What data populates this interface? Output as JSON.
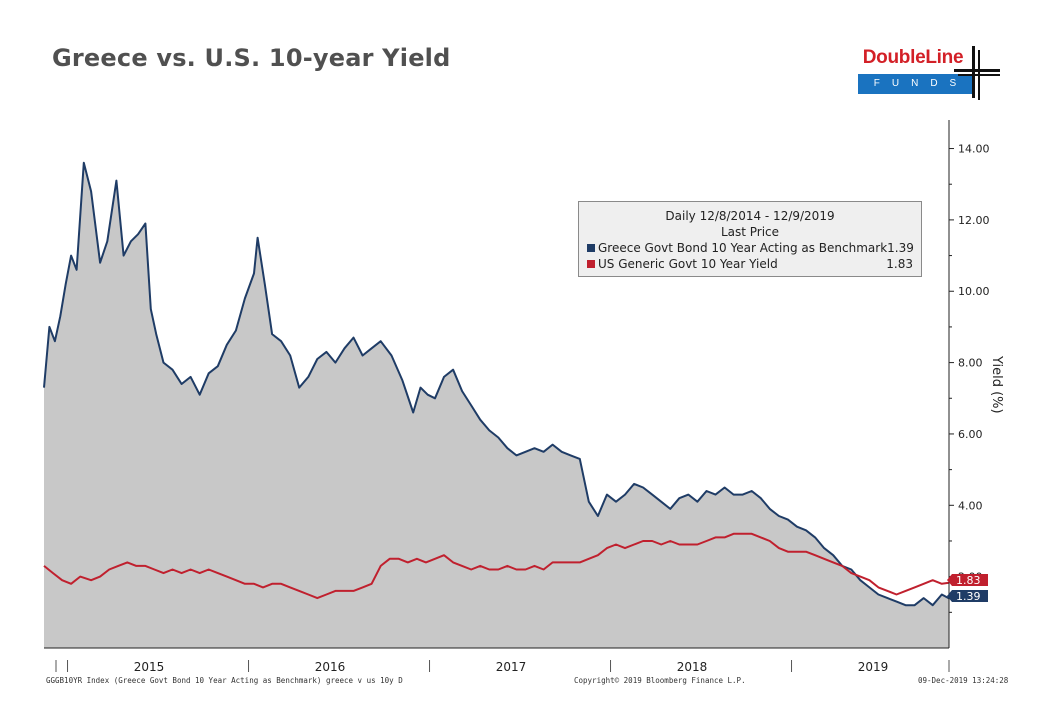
{
  "slide": {
    "title": "Greece vs. U.S. 10-year Yield"
  },
  "logo": {
    "name": "DoubleLine",
    "sub": "FUNDS"
  },
  "chart_data": {
    "type": "area",
    "title": "Greece vs. U.S. 10-year Yield",
    "ylabel": "Yield (%)",
    "xlabel": "",
    "ylim": [
      0,
      14.8
    ],
    "y_ticks": [
      "14.00",
      "12.00",
      "10.00",
      "8.00",
      "6.00",
      "4.00",
      "2.00"
    ],
    "y_tick_values": [
      14,
      12,
      10,
      8,
      6,
      4,
      2
    ],
    "x_ticks": [
      "2015",
      "2016",
      "2017",
      "2018",
      "2019"
    ],
    "x_tick_values": [
      2015.5,
      2016.5,
      2017.5,
      2018.5,
      2019.5
    ],
    "xlim": [
      2014.94,
      2019.94
    ],
    "legend": {
      "header1": "Daily 12/8/2014 - 12/9/2019",
      "header2": "Last Price",
      "placement": "top-right"
    },
    "series": [
      {
        "name": "Greece Govt Bond 10 Year Acting as Benchmark",
        "last": "1.39",
        "color": "#1f3c66",
        "fill": "#c8c8c8",
        "x": [
          2014.94,
          2014.97,
          2015.0,
          2015.03,
          2015.06,
          2015.09,
          2015.12,
          2015.16,
          2015.2,
          2015.25,
          2015.29,
          2015.34,
          2015.38,
          2015.42,
          2015.46,
          2015.5,
          2015.53,
          2015.56,
          2015.6,
          2015.65,
          2015.7,
          2015.75,
          2015.8,
          2015.85,
          2015.9,
          2015.95,
          2016.0,
          2016.05,
          2016.1,
          2016.12,
          2016.16,
          2016.2,
          2016.25,
          2016.3,
          2016.35,
          2016.4,
          2016.45,
          2016.5,
          2016.55,
          2016.6,
          2016.65,
          2016.7,
          2016.75,
          2016.8,
          2016.86,
          2016.92,
          2016.98,
          2017.02,
          2017.06,
          2017.1,
          2017.15,
          2017.2,
          2017.25,
          2017.3,
          2017.35,
          2017.4,
          2017.45,
          2017.5,
          2017.55,
          2017.6,
          2017.65,
          2017.7,
          2017.75,
          2017.8,
          2017.85,
          2017.9,
          2017.95,
          2018.0,
          2018.05,
          2018.1,
          2018.15,
          2018.2,
          2018.25,
          2018.3,
          2018.35,
          2018.4,
          2018.45,
          2018.5,
          2018.55,
          2018.6,
          2018.65,
          2018.7,
          2018.75,
          2018.8,
          2018.85,
          2018.9,
          2018.95,
          2019.0,
          2019.05,
          2019.1,
          2019.15,
          2019.2,
          2019.25,
          2019.3,
          2019.35,
          2019.4,
          2019.45,
          2019.5,
          2019.55,
          2019.6,
          2019.65,
          2019.7,
          2019.75,
          2019.8,
          2019.85,
          2019.9,
          2019.94
        ],
        "values": [
          7.3,
          9.0,
          8.6,
          9.3,
          10.2,
          11.0,
          10.6,
          13.6,
          12.8,
          10.8,
          11.4,
          13.1,
          11.0,
          11.4,
          11.6,
          11.9,
          9.5,
          8.8,
          8.0,
          7.8,
          7.4,
          7.6,
          7.1,
          7.7,
          7.9,
          8.5,
          8.9,
          9.8,
          10.5,
          11.5,
          10.2,
          8.8,
          8.6,
          8.2,
          7.3,
          7.6,
          8.1,
          8.3,
          8.0,
          8.4,
          8.7,
          8.2,
          8.4,
          8.6,
          8.2,
          7.5,
          6.6,
          7.3,
          7.1,
          7.0,
          7.6,
          7.8,
          7.2,
          6.8,
          6.4,
          6.1,
          5.9,
          5.6,
          5.4,
          5.5,
          5.6,
          5.5,
          5.7,
          5.5,
          5.4,
          5.3,
          4.1,
          3.7,
          4.3,
          4.1,
          4.3,
          4.6,
          4.5,
          4.3,
          4.1,
          3.9,
          4.2,
          4.3,
          4.1,
          4.4,
          4.3,
          4.5,
          4.3,
          4.3,
          4.4,
          4.2,
          3.9,
          3.7,
          3.6,
          3.4,
          3.3,
          3.1,
          2.8,
          2.6,
          2.3,
          2.2,
          1.9,
          1.7,
          1.5,
          1.4,
          1.3,
          1.2,
          1.2,
          1.4,
          1.2,
          1.5,
          1.39
        ]
      },
      {
        "name": "US Generic Govt 10 Year Yield",
        "last": "1.83",
        "color": "#c0202e",
        "x": [
          2014.94,
          2014.99,
          2015.04,
          2015.09,
          2015.14,
          2015.2,
          2015.25,
          2015.3,
          2015.35,
          2015.4,
          2015.45,
          2015.5,
          2015.55,
          2015.6,
          2015.65,
          2015.7,
          2015.75,
          2015.8,
          2015.85,
          2015.9,
          2015.95,
          2016.0,
          2016.05,
          2016.1,
          2016.15,
          2016.2,
          2016.25,
          2016.3,
          2016.35,
          2016.4,
          2016.45,
          2016.5,
          2016.55,
          2016.6,
          2016.65,
          2016.7,
          2016.75,
          2016.8,
          2016.85,
          2016.9,
          2016.95,
          2017.0,
          2017.05,
          2017.1,
          2017.15,
          2017.2,
          2017.25,
          2017.3,
          2017.35,
          2017.4,
          2017.45,
          2017.5,
          2017.55,
          2017.6,
          2017.65,
          2017.7,
          2017.75,
          2017.8,
          2017.85,
          2017.9,
          2017.95,
          2018.0,
          2018.05,
          2018.1,
          2018.15,
          2018.2,
          2018.25,
          2018.3,
          2018.35,
          2018.4,
          2018.45,
          2018.5,
          2018.55,
          2018.6,
          2018.65,
          2018.7,
          2018.75,
          2018.8,
          2018.85,
          2018.9,
          2018.95,
          2019.0,
          2019.05,
          2019.1,
          2019.15,
          2019.2,
          2019.25,
          2019.3,
          2019.35,
          2019.4,
          2019.45,
          2019.5,
          2019.55,
          2019.6,
          2019.65,
          2019.7,
          2019.75,
          2019.8,
          2019.85,
          2019.9,
          2019.94
        ],
        "values": [
          2.3,
          2.1,
          1.9,
          1.8,
          2.0,
          1.9,
          2.0,
          2.2,
          2.3,
          2.4,
          2.3,
          2.3,
          2.2,
          2.1,
          2.2,
          2.1,
          2.2,
          2.1,
          2.2,
          2.1,
          2.0,
          1.9,
          1.8,
          1.8,
          1.7,
          1.8,
          1.8,
          1.7,
          1.6,
          1.5,
          1.4,
          1.5,
          1.6,
          1.6,
          1.6,
          1.7,
          1.8,
          2.3,
          2.5,
          2.5,
          2.4,
          2.5,
          2.4,
          2.5,
          2.6,
          2.4,
          2.3,
          2.2,
          2.3,
          2.2,
          2.2,
          2.3,
          2.2,
          2.2,
          2.3,
          2.2,
          2.4,
          2.4,
          2.4,
          2.4,
          2.5,
          2.6,
          2.8,
          2.9,
          2.8,
          2.9,
          3.0,
          3.0,
          2.9,
          3.0,
          2.9,
          2.9,
          2.9,
          3.0,
          3.1,
          3.1,
          3.2,
          3.2,
          3.2,
          3.1,
          3.0,
          2.8,
          2.7,
          2.7,
          2.7,
          2.6,
          2.5,
          2.4,
          2.3,
          2.1,
          2.0,
          1.9,
          1.7,
          1.6,
          1.5,
          1.6,
          1.7,
          1.8,
          1.9,
          1.8,
          1.83
        ]
      }
    ]
  },
  "footer": {
    "left": "GGGB10YR Index (Greece Govt Bond 10 Year Acting as Benchmark) greece v us 10y  D",
    "center": "Copyright© 2019 Bloomberg Finance L.P.",
    "right": "09-Dec-2019 13:24:28"
  }
}
